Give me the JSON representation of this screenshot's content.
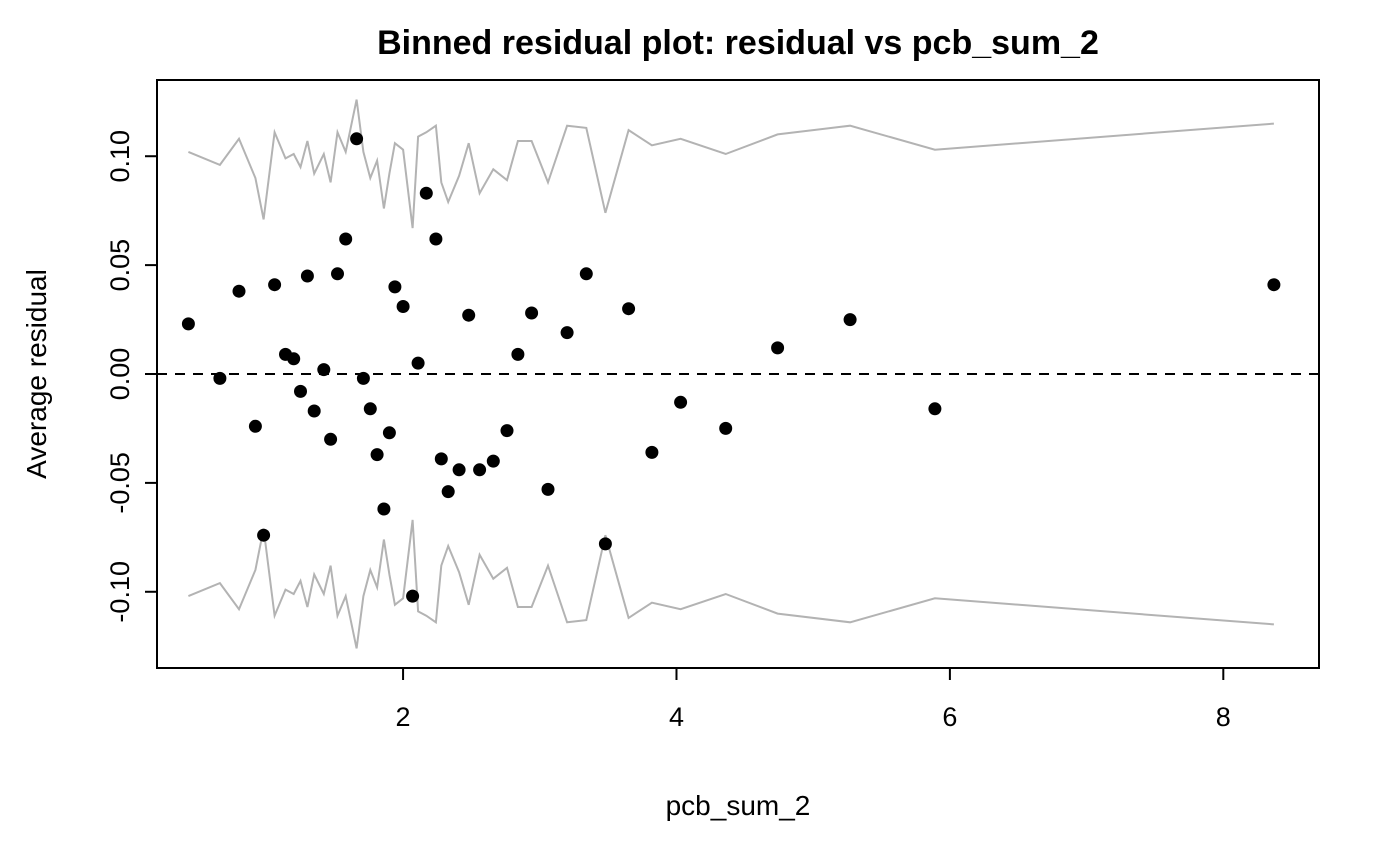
{
  "chart_data": {
    "type": "scatter",
    "title": "Binned residual plot: residual vs pcb_sum_2",
    "xlabel": "pcb_sum_2",
    "ylabel": "Average residual",
    "xlim": [
      0.2,
      8.7
    ],
    "ylim": [
      -0.135,
      0.135
    ],
    "xticks": [
      2,
      4,
      6,
      8
    ],
    "xtick_labels": [
      "2",
      "4",
      "6",
      "8"
    ],
    "yticks": [
      -0.1,
      -0.05,
      0.0,
      0.05,
      0.1
    ],
    "ytick_labels": [
      "-0.10",
      "-0.05",
      "0.00",
      "0.05",
      "0.10"
    ],
    "reference_line": {
      "y": 0,
      "style": "dashed",
      "color": "#000000"
    },
    "points": {
      "color": "#000000",
      "x": [
        0.43,
        0.66,
        0.8,
        0.92,
        0.98,
        1.06,
        1.14,
        1.2,
        1.25,
        1.3,
        1.35,
        1.42,
        1.47,
        1.52,
        1.58,
        1.66,
        1.71,
        1.76,
        1.81,
        1.86,
        1.9,
        1.94,
        2.0,
        2.07,
        2.11,
        2.17,
        2.24,
        2.28,
        2.33,
        2.41,
        2.48,
        2.56,
        2.66,
        2.76,
        2.84,
        2.94,
        3.06,
        3.2,
        3.34,
        3.48,
        3.65,
        3.82,
        4.03,
        4.36,
        4.74,
        5.27,
        5.89,
        8.37
      ],
      "y": [
        0.023,
        -0.002,
        0.038,
        -0.024,
        -0.074,
        0.041,
        0.009,
        0.007,
        -0.008,
        0.045,
        -0.017,
        0.002,
        -0.03,
        0.046,
        0.062,
        0.108,
        -0.002,
        -0.016,
        -0.037,
        -0.062,
        -0.027,
        0.04,
        0.031,
        -0.102,
        0.005,
        0.083,
        0.062,
        -0.039,
        -0.054,
        -0.044,
        0.027,
        -0.044,
        -0.04,
        -0.026,
        0.009,
        0.028,
        -0.053,
        0.019,
        0.046,
        -0.078,
        0.03,
        -0.036,
        -0.013,
        -0.025,
        0.012,
        0.025,
        -0.016,
        0.041
      ]
    },
    "bounds": {
      "color": "#b3b3b3",
      "x": [
        0.43,
        0.66,
        0.8,
        0.92,
        0.98,
        1.06,
        1.14,
        1.2,
        1.25,
        1.3,
        1.35,
        1.42,
        1.47,
        1.52,
        1.58,
        1.66,
        1.71,
        1.76,
        1.81,
        1.86,
        1.9,
        1.94,
        2.0,
        2.07,
        2.11,
        2.17,
        2.24,
        2.28,
        2.33,
        2.41,
        2.48,
        2.56,
        2.66,
        2.76,
        2.84,
        2.94,
        3.06,
        3.2,
        3.34,
        3.48,
        3.65,
        3.82,
        4.03,
        4.36,
        4.74,
        5.27,
        5.89,
        8.37
      ],
      "upper": [
        0.102,
        0.096,
        0.108,
        0.09,
        0.071,
        0.111,
        0.099,
        0.101,
        0.095,
        0.107,
        0.092,
        0.101,
        0.088,
        0.111,
        0.102,
        0.126,
        0.102,
        0.09,
        0.098,
        0.076,
        0.092,
        0.106,
        0.103,
        0.067,
        0.109,
        0.111,
        0.114,
        0.088,
        0.079,
        0.091,
        0.106,
        0.083,
        0.094,
        0.089,
        0.107,
        0.107,
        0.088,
        0.114,
        0.113,
        0.074,
        0.112,
        0.105,
        0.108,
        0.101,
        0.11,
        0.114,
        0.103,
        0.115
      ],
      "lower": [
        -0.102,
        -0.096,
        -0.108,
        -0.09,
        -0.071,
        -0.111,
        -0.099,
        -0.101,
        -0.095,
        -0.107,
        -0.092,
        -0.101,
        -0.088,
        -0.111,
        -0.102,
        -0.126,
        -0.102,
        -0.09,
        -0.098,
        -0.076,
        -0.092,
        -0.106,
        -0.103,
        -0.067,
        -0.109,
        -0.111,
        -0.114,
        -0.088,
        -0.079,
        -0.091,
        -0.106,
        -0.083,
        -0.094,
        -0.089,
        -0.107,
        -0.107,
        -0.088,
        -0.114,
        -0.113,
        -0.074,
        -0.112,
        -0.105,
        -0.108,
        -0.101,
        -0.11,
        -0.114,
        -0.103,
        -0.115
      ]
    },
    "grid": false,
    "legend": "none"
  }
}
